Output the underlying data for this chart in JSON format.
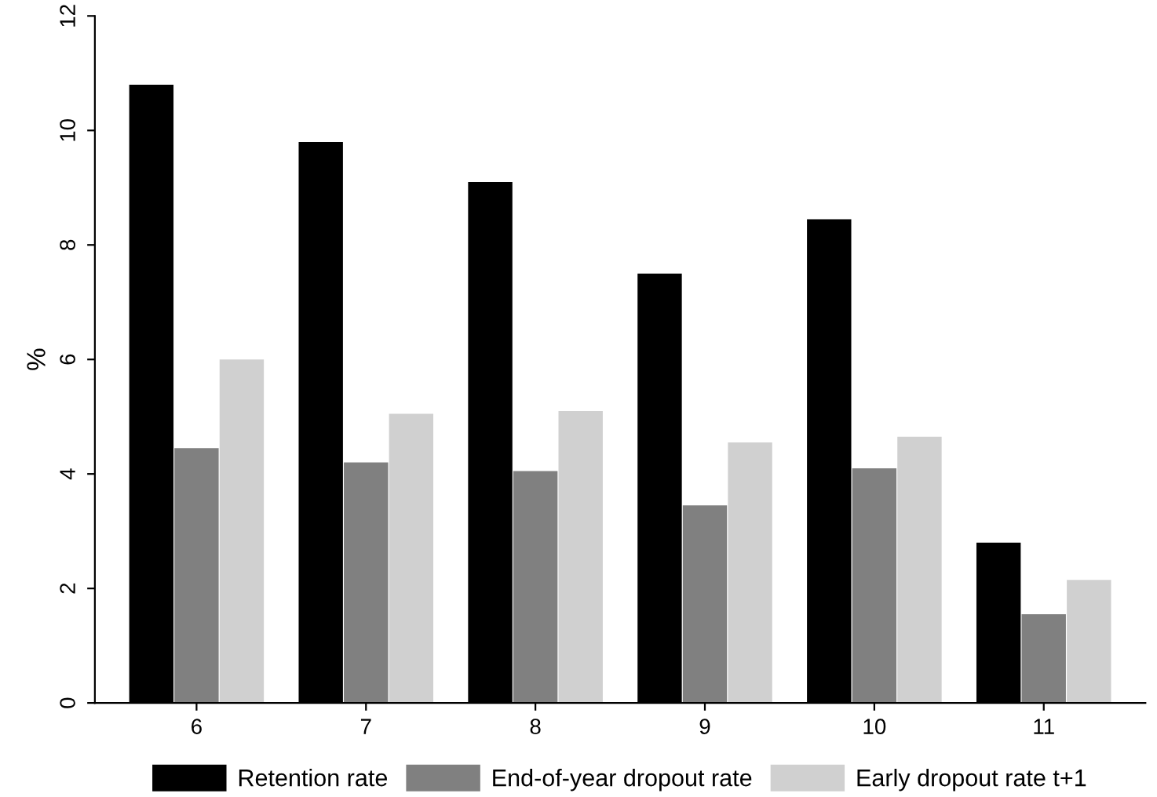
{
  "chart_data": {
    "type": "bar",
    "ylabel": "%",
    "categories": [
      "6",
      "7",
      "8",
      "9",
      "10",
      "11"
    ],
    "series": [
      {
        "name": "Retention rate",
        "color": "#000000",
        "values": [
          10.8,
          9.8,
          9.1,
          7.5,
          8.45,
          2.8
        ]
      },
      {
        "name": "End-of-year dropout rate",
        "color": "#808080",
        "values": [
          4.45,
          4.2,
          4.05,
          3.45,
          4.1,
          1.55
        ]
      },
      {
        "name": "Early dropout rate t+1",
        "color": "#d0d0d0",
        "values": [
          6.0,
          5.05,
          5.1,
          4.55,
          4.65,
          2.15
        ]
      }
    ],
    "ylim": [
      0,
      12
    ],
    "yticks": [
      0,
      2,
      4,
      6,
      8,
      10,
      12
    ],
    "grid": false,
    "legend": "bottom"
  }
}
